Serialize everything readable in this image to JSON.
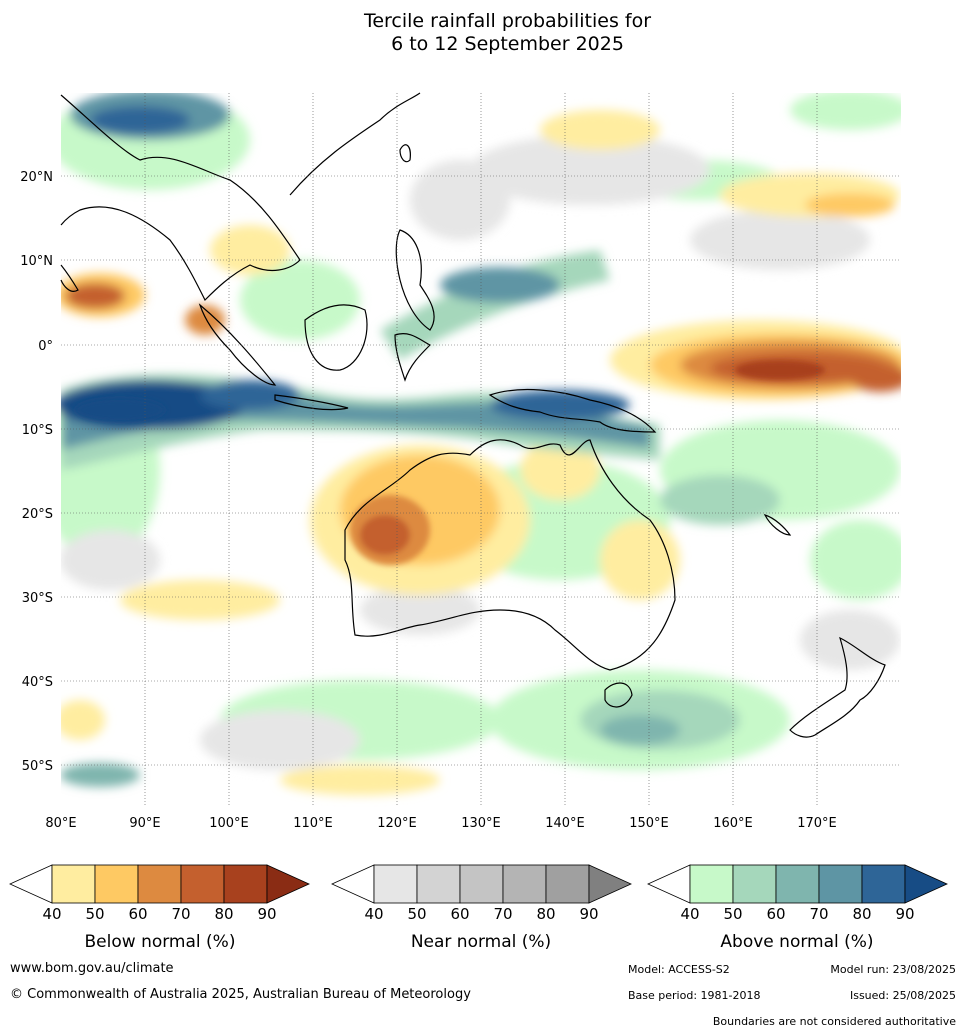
{
  "title": {
    "line1": "Tercile rainfall probabilities for",
    "line2": "6 to 12 September 2025"
  },
  "map": {
    "lon_labels": [
      "80°E",
      "90°E",
      "100°E",
      "110°E",
      "120°E",
      "130°E",
      "140°E",
      "150°E",
      "160°E",
      "170°E"
    ],
    "lat_labels": [
      "20°N",
      "10°N",
      "0°",
      "10°S",
      "20°S",
      "30°S",
      "40°S",
      "50°S"
    ],
    "lon_range": [
      80,
      180
    ],
    "lat_range": [
      -55,
      30
    ],
    "background_color": "#ffffff"
  },
  "legends": [
    {
      "label": "Below normal (%)",
      "ticks": [
        "40",
        "50",
        "60",
        "70",
        "80",
        "90"
      ],
      "colors": [
        "#ffffff",
        "#ffeda0",
        "#fec963",
        "#dd8a40",
        "#c4602e",
        "#a8411e",
        "#8a2c14"
      ]
    },
    {
      "label": "Near normal (%)",
      "ticks": [
        "40",
        "50",
        "60",
        "70",
        "80",
        "90"
      ],
      "colors": [
        "#ffffff",
        "#e6e6e6",
        "#d3d3d3",
        "#c4c4c4",
        "#b4b4b4",
        "#a0a0a0",
        "#808080"
      ]
    },
    {
      "label": "Above normal (%)",
      "ticks": [
        "40",
        "50",
        "60",
        "70",
        "80",
        "90"
      ],
      "colors": [
        "#ffffff",
        "#c7f9c9",
        "#a5d7bb",
        "#7fb5ae",
        "#5e95a4",
        "#2e6597",
        "#174c85"
      ]
    }
  ],
  "footer": {
    "website": "www.bom.gov.au/climate",
    "copyright": "© Commonwealth of Australia 2025, Australian Bureau of Meteorology",
    "model": "Model: ACCESS-S2",
    "model_run": "Model run: 23/08/2025",
    "base_period": "Base period: 1981-2018",
    "issued": "Issued: 25/08/2025",
    "disclaimer": "Boundaries are not considered authoritative"
  }
}
